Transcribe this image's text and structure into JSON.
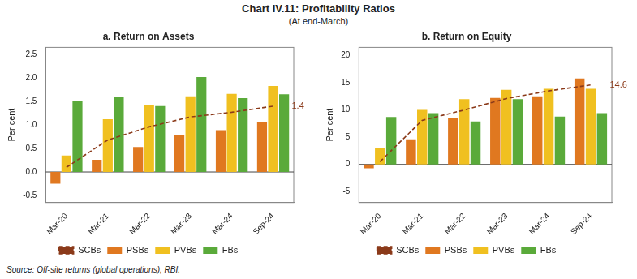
{
  "title": "Chart IV.11: Profitability Ratios",
  "subtitle": "(At end-March)",
  "source": "Source: Off-site returns (global operations), RBI.",
  "chart_data": [
    {
      "type": "bar",
      "title": "a. Return on Assets",
      "ylabel": "Per cent",
      "categories": [
        "Mar-20",
        "Mar-21",
        "Mar-22",
        "Mar-23",
        "Mar-24",
        "Sep-24"
      ],
      "series": [
        {
          "name": "PSBs",
          "color": "#e07820",
          "values": [
            -0.25,
            0.26,
            0.53,
            0.79,
            0.89,
            1.07
          ]
        },
        {
          "name": "PVBs",
          "color": "#f0c020",
          "values": [
            0.35,
            1.12,
            1.42,
            1.61,
            1.66,
            1.83
          ]
        },
        {
          "name": "FBs",
          "color": "#5aaa3a",
          "values": [
            1.51,
            1.6,
            1.4,
            2.02,
            1.57,
            1.65
          ]
        },
        {
          "name": "SCBs",
          "type": "line",
          "line_style": "dashed",
          "color": "#8b3a1a",
          "values": [
            0.1,
            0.68,
            0.96,
            1.17,
            1.27,
            1.4
          ]
        }
      ],
      "annotations": [
        {
          "text": "1.4",
          "x": "Sep-24",
          "y": 1.4,
          "color": "#8b3a1a"
        }
      ],
      "ylim": [
        -0.65,
        2.65
      ],
      "yticks": [
        -0.5,
        {
          "value": 0.0,
          "label": "0.0"
        },
        0.5,
        {
          "value": 1.0,
          "label": "1.0"
        },
        1.5,
        {
          "value": 2.0,
          "label": "2.0"
        },
        2.5
      ],
      "grid": false,
      "legend": "bottom"
    },
    {
      "type": "bar",
      "title": "b. Return on Equity",
      "ylabel": "Per cent",
      "categories": [
        "Mar-20",
        "Mar-21",
        "Mar-22",
        "Mar-23",
        "Mar-24",
        "Sep-24"
      ],
      "series": [
        {
          "name": "PSBs",
          "color": "#e07820",
          "values": [
            -0.7,
            4.6,
            8.5,
            12.2,
            12.5,
            15.8
          ]
        },
        {
          "name": "PVBs",
          "color": "#f0c020",
          "values": [
            3.1,
            10.0,
            12.0,
            13.7,
            13.9,
            13.9
          ]
        },
        {
          "name": "FBs",
          "color": "#5aaa3a",
          "values": [
            8.7,
            9.4,
            7.9,
            12.0,
            8.8,
            9.4
          ]
        },
        {
          "name": "SCBs",
          "type": "line",
          "line_style": "dashed",
          "color": "#8b3a1a",
          "values": [
            0.5,
            8.1,
            10.0,
            12.1,
            13.5,
            14.6
          ]
        }
      ],
      "annotations": [
        {
          "text": "14.6",
          "x": "Sep-24",
          "y": 14.6,
          "color": "#8b3a1a"
        }
      ],
      "ylim": [
        -7.0,
        21.5
      ],
      "yticks": [
        -5,
        0,
        5,
        10,
        15,
        20
      ],
      "grid": false,
      "legend": "bottom"
    }
  ]
}
